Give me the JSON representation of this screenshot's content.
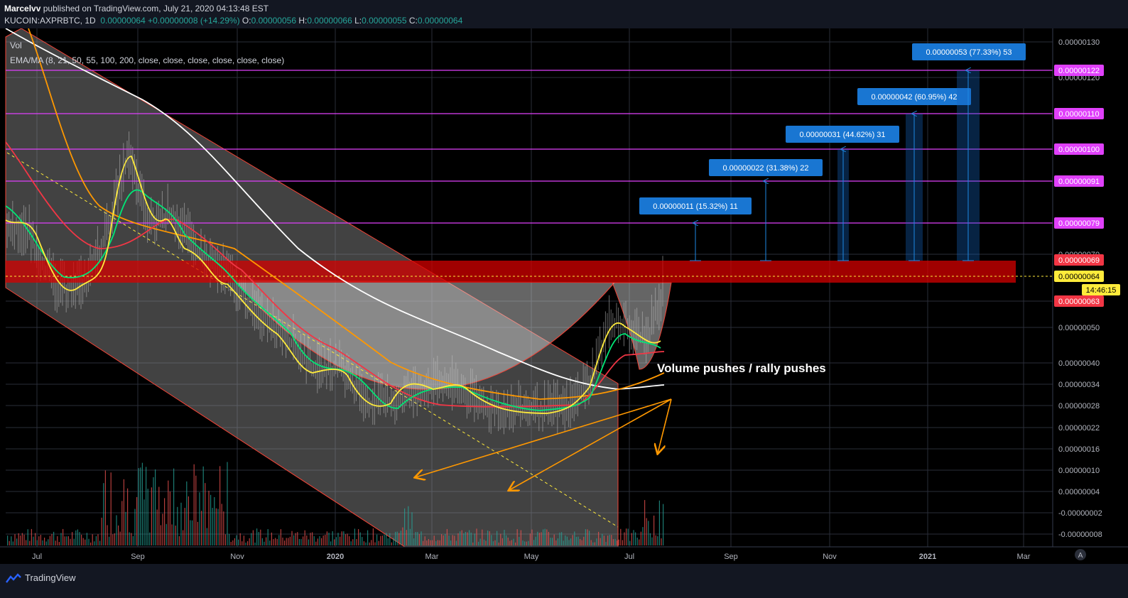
{
  "header": {
    "author": "Marcelvv",
    "published_text": "published on TradingView.com, July 21, 2020 04:13:48 EST",
    "symbol": "KUCOIN:AXPRBTC, 1D",
    "last": "0.00000064",
    "change": "+0.00000008 (+14.29%)",
    "o_label": "O:",
    "o": "0.00000056",
    "h_label": "H:",
    "h": "0.00000066",
    "l_label": "L:",
    "l": "0.00000055",
    "c_label": "C:",
    "c": "0.00000064"
  },
  "indicators": {
    "vol": "Vol",
    "ema": "EMA/MA (8, 21, 50, 55, 100, 200, close, close, close, close, close, close)"
  },
  "footer": {
    "brand": "TradingView",
    "logo_icon": "tradingview-logo-icon"
  },
  "chart_data": {
    "type": "line",
    "symbol": "KUCOIN:AXPRBTC",
    "interval": "1D",
    "grid": true,
    "x_ticks": [
      "Jul",
      "Sep",
      "Nov",
      "2020",
      "Mar",
      "May",
      "Jul",
      "Sep",
      "Nov",
      "2021",
      "Mar"
    ],
    "y_ticks": [
      "0.00000130",
      "0.00000120",
      "0.00000110",
      "0.00000100",
      "0.00000091",
      "0.00000079",
      "0.00000070",
      "0.00000063",
      "0.00000050",
      "0.00000040",
      "0.00000034",
      "0.00000028",
      "0.00000022",
      "0.00000016",
      "0.00000010",
      "0.00000004",
      "-0.00000002",
      "-0.00000008"
    ],
    "price_labels": [
      {
        "text": "0.00000122",
        "color": "#e040fb"
      },
      {
        "text": "0.00000110",
        "color": "#e040fb"
      },
      {
        "text": "0.00000100",
        "color": "#e040fb"
      },
      {
        "text": "0.00000091",
        "color": "#e040fb"
      },
      {
        "text": "0.00000079",
        "color": "#e040fb"
      },
      {
        "text": "0.00000069",
        "color": "#f23645"
      },
      {
        "text": "0.00000064",
        "color": "#ffeb3b"
      },
      {
        "text": "14:46:15",
        "color": "#ffeb3b"
      },
      {
        "text": "0.00000063",
        "color": "#f23645"
      }
    ],
    "target_levels": [
      7.9e-07,
      9.1e-07,
      1e-06,
      1.1e-06,
      1.22e-06
    ],
    "resistance_zone": [
      6.3e-07,
      6.9e-07
    ],
    "current_price": 6.4e-07,
    "measurements": [
      {
        "label": "0.00000011 (15.32%) 11",
        "from": 6.9e-07,
        "to": 7.9e-07
      },
      {
        "label": "0.00000022 (31.38%) 22",
        "from": 6.9e-07,
        "to": 9.1e-07
      },
      {
        "label": "0.00000031 (44.62%) 31",
        "from": 6.9e-07,
        "to": 1e-06
      },
      {
        "label": "0.00000042 (60.95%) 42",
        "from": 6.9e-07,
        "to": 1.1e-06
      },
      {
        "label": "0.00000053 (77.33%) 53",
        "from": 6.9e-07,
        "to": 1.22e-06
      }
    ],
    "annotation": "Volume pushes / rally pushes",
    "colors": {
      "ema8": "#ffeb3b",
      "ema21": "#00e676",
      "ema50": "#f23645",
      "ema100": "#ff9800",
      "ema200": "#ffffff",
      "target": "#e040fb",
      "zone": "#d50000",
      "measure": "#1976d2",
      "arrow": "#ff9800"
    }
  }
}
